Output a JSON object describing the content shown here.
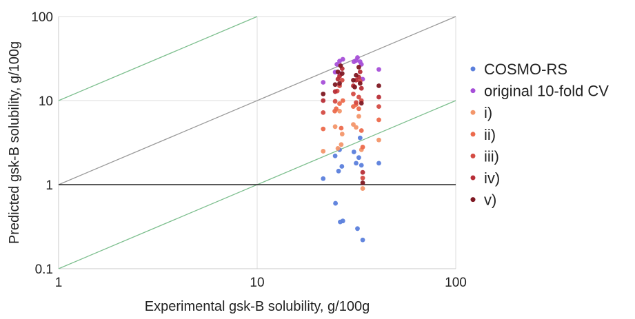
{
  "chart_data": {
    "type": "scatter",
    "title": "",
    "xlabel": "Experimental gsk-B solubility, g/100g",
    "ylabel": "Predicted gsk-B solubility, g/100g",
    "xscale": "log",
    "yscale": "log",
    "xlim": [
      1,
      100
    ],
    "ylim": [
      0.1,
      100
    ],
    "x_ticks": [
      "1",
      "10",
      "100"
    ],
    "y_ticks": [
      "0.1",
      "1",
      "10",
      "100"
    ],
    "grid": true,
    "legend_position": "right",
    "reference_lines": [
      {
        "role": "parity",
        "color": "#9a9a9a",
        "points": [
          [
            1,
            1
          ],
          [
            100,
            100
          ]
        ]
      },
      {
        "role": "plus-1-decade",
        "color": "#7dbf8e",
        "points": [
          [
            1,
            10
          ],
          [
            10,
            100
          ]
        ]
      },
      {
        "role": "minus-1-decade",
        "color": "#7dbf8e",
        "points": [
          [
            1,
            0.1
          ],
          [
            100,
            10
          ]
        ]
      },
      {
        "role": "unity",
        "color": "#222222",
        "points": [
          [
            1,
            1
          ],
          [
            100,
            1
          ]
        ]
      }
    ],
    "series": [
      {
        "name": "COSMO-RS",
        "color": "#5b7fdc",
        "points": [
          [
            21.5,
            1.18
          ],
          [
            24.7,
            2.2
          ],
          [
            24.8,
            0.6
          ],
          [
            25.7,
            1.45
          ],
          [
            26.2,
            0.36
          ],
          [
            26.7,
            1.65
          ],
          [
            27.0,
            0.37
          ],
          [
            30.7,
            2.45
          ],
          [
            31.5,
            1.8
          ],
          [
            32.0,
            0.3
          ],
          [
            32.5,
            2.1
          ],
          [
            33.0,
            3.6
          ],
          [
            34.0,
            0.22
          ],
          [
            41.0,
            1.8
          ],
          [
            26.0,
            2.6
          ],
          [
            33.5,
            1.7
          ]
        ]
      },
      {
        "name": "original 10-fold CV",
        "color": "#a64fd8",
        "points": [
          [
            21.5,
            16.5
          ],
          [
            24.7,
            21.8
          ],
          [
            25.2,
            27.0
          ],
          [
            26.0,
            29.5
          ],
          [
            27.0,
            31.0
          ],
          [
            30.7,
            29.0
          ],
          [
            31.5,
            30.0
          ],
          [
            32.0,
            32.5
          ],
          [
            33.0,
            29.0
          ],
          [
            33.5,
            27.0
          ],
          [
            34.0,
            18.0
          ],
          [
            41.0,
            23.5
          ],
          [
            26.0,
            21.0
          ]
        ]
      },
      {
        "name": "i)",
        "color": "#f3966a",
        "points": [
          [
            21.5,
            2.5
          ],
          [
            24.7,
            4.9
          ],
          [
            25.5,
            2.7
          ],
          [
            26.5,
            3.0
          ],
          [
            26.8,
            4.0
          ],
          [
            30.5,
            5.2
          ],
          [
            31.5,
            4.8
          ],
          [
            32.5,
            6.5
          ],
          [
            33.5,
            2.6
          ],
          [
            34.0,
            0.9
          ],
          [
            41.0,
            3.4
          ],
          [
            26.0,
            7.5
          ]
        ]
      },
      {
        "name": "ii)",
        "color": "#ec6a4c",
        "points": [
          [
            21.5,
            4.6
          ],
          [
            24.6,
            7.5
          ],
          [
            25.0,
            8.0
          ],
          [
            26.0,
            9.2
          ],
          [
            26.5,
            4.7
          ],
          [
            27.0,
            10.0
          ],
          [
            30.5,
            8.5
          ],
          [
            31.5,
            9.0
          ],
          [
            32.5,
            8.0
          ],
          [
            33.5,
            4.4
          ],
          [
            34.0,
            2.8
          ],
          [
            41.0,
            5.9
          ]
        ]
      },
      {
        "name": "iii)",
        "color": "#d44c44",
        "points": [
          [
            21.5,
            7.2
          ],
          [
            24.7,
            9.8
          ],
          [
            25.3,
            13.0
          ],
          [
            26.0,
            15.0
          ],
          [
            26.8,
            17.5
          ],
          [
            30.5,
            12.0
          ],
          [
            31.5,
            9.5
          ],
          [
            32.5,
            11.0
          ],
          [
            33.0,
            17.0
          ],
          [
            33.5,
            10.0
          ],
          [
            34.0,
            1.2
          ],
          [
            41.0,
            8.5
          ]
        ]
      },
      {
        "name": "iv)",
        "color": "#b72e37",
        "points": [
          [
            21.5,
            10.0
          ],
          [
            24.7,
            12.8
          ],
          [
            25.5,
            18.0
          ],
          [
            26.0,
            19.5
          ],
          [
            26.8,
            24.0
          ],
          [
            30.5,
            15.0
          ],
          [
            31.5,
            17.5
          ],
          [
            32.5,
            19.0
          ],
          [
            33.0,
            22.0
          ],
          [
            33.5,
            14.0
          ],
          [
            34.0,
            1.4
          ],
          [
            41.0,
            11.0
          ]
        ]
      },
      {
        "name": "v)",
        "color": "#7e1822",
        "points": [
          [
            21.5,
            12.0
          ],
          [
            24.7,
            15.5
          ],
          [
            25.5,
            22.0
          ],
          [
            26.3,
            26.0
          ],
          [
            26.8,
            21.0
          ],
          [
            30.5,
            17.5
          ],
          [
            31.5,
            20.0
          ],
          [
            32.5,
            25.0
          ],
          [
            33.0,
            16.0
          ],
          [
            33.5,
            9.3
          ],
          [
            34.0,
            1.05
          ],
          [
            41.0,
            15.0
          ],
          [
            26.0,
            16.0
          ],
          [
            31.0,
            14.5
          ]
        ]
      }
    ]
  }
}
